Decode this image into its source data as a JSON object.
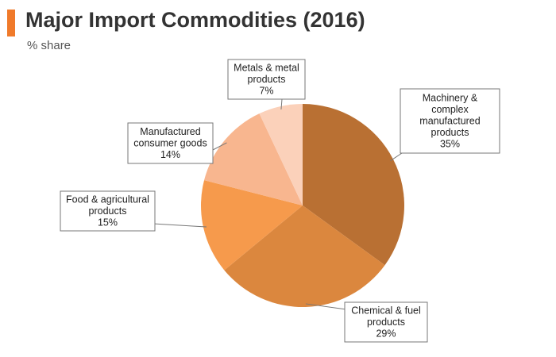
{
  "header": {
    "title": "Major Import Commodities (2016)",
    "subtitle": "% share",
    "accent_color": "#F07A2B"
  },
  "chart_data": {
    "type": "pie",
    "title": "Major Import Commodities (2016)",
    "subtitle": "% share",
    "unit": "%",
    "start": "12 o'clock",
    "direction": "clockwise",
    "slices": [
      {
        "label_lines": [
          "Machinery &",
          "complex",
          "manufactured",
          "products"
        ],
        "value": 35,
        "value_label": "35%",
        "color": "#B97033"
      },
      {
        "label_lines": [
          "Chemical & fuel",
          "products"
        ],
        "value": 29,
        "value_label": "29%",
        "color": "#DB873E"
      },
      {
        "label_lines": [
          "Food & agricultural",
          "products"
        ],
        "value": 15,
        "value_label": "15%",
        "color": "#F69A4C"
      },
      {
        "label_lines": [
          "Manufactured",
          "consumer goods"
        ],
        "value": 14,
        "value_label": "14%",
        "color": "#F8B68F"
      },
      {
        "label_lines": [
          "Metals & metal",
          "products"
        ],
        "value": 7,
        "value_label": "7%",
        "color": "#FBD1BA"
      }
    ]
  }
}
